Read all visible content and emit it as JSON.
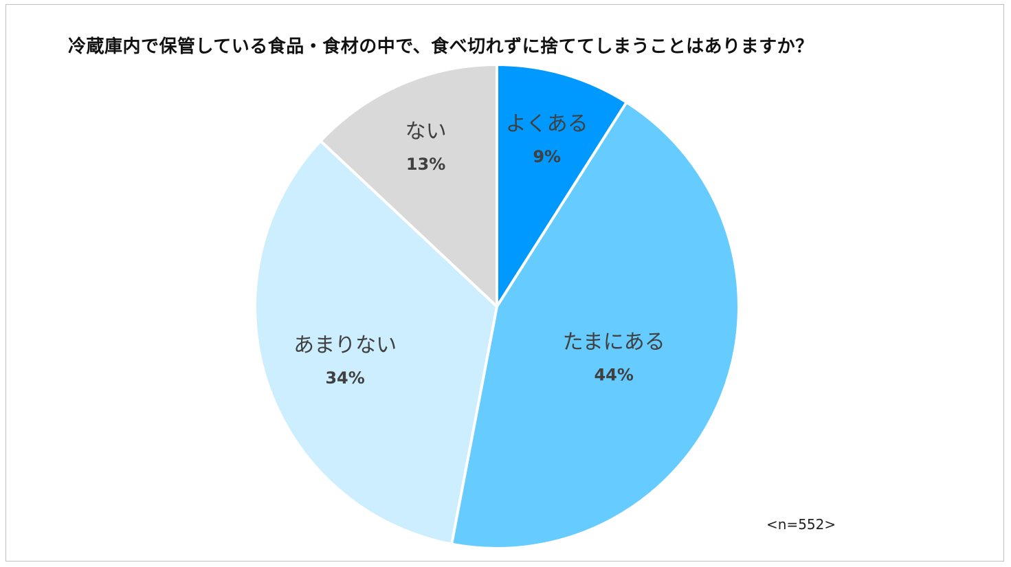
{
  "chart_data": {
    "type": "pie",
    "title": "冷蔵庫内で保管している食品・食材の中で、食べ切れずに捨ててしまうことはありますか？",
    "categories": [
      "よくある",
      "たまにある",
      "あまりない",
      "ない"
    ],
    "values": [
      9,
      44,
      34,
      13
    ],
    "value_labels": [
      "9%",
      "44%",
      "34%",
      "13%"
    ],
    "unit": "%",
    "sample_size": "<n=552>",
    "start_angle": "12 o'clock",
    "direction": "clockwise",
    "legend": "none",
    "colors": [
      "#0099ff",
      "#66ccff",
      "#cceeff",
      "#d9d9d9"
    ]
  }
}
